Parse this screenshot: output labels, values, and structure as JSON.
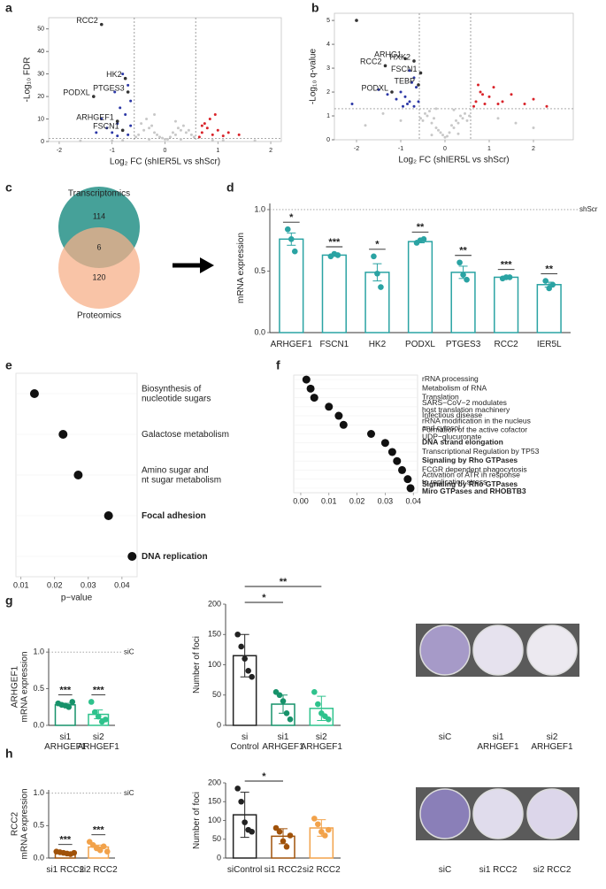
{
  "chart_data": [
    {
      "panel": "a",
      "type": "scatter",
      "xlabel": "Log₂ FC (shIER5L vs shScr)",
      "ylabel": "-Log₁₀ FDR",
      "xlim": [
        -2.2,
        2.2
      ],
      "xticks": [
        -2,
        -1,
        0,
        1,
        2
      ],
      "ylim": [
        0,
        55
      ],
      "yticks": [
        0,
        10,
        20,
        30,
        40,
        50
      ],
      "vlines": [
        -0.58,
        0.58
      ],
      "hline": 1.3,
      "series": [
        {
          "color": "#c8c8c8",
          "x": [
            -0.5,
            -0.4,
            -0.3,
            -0.2,
            -0.1,
            0,
            0.1,
            0.2,
            0.3,
            0.4,
            0.5,
            -0.45,
            -0.35,
            -0.25,
            -0.15,
            0.15,
            0.25,
            0.35,
            0.45,
            -0.55,
            0.55,
            -0.05,
            0.05,
            -0.3,
            0.3,
            -0.8,
            0.9,
            -1.0,
            1.1,
            -1.6,
            1.7,
            -0.2,
            0.2
          ],
          "values": [
            3,
            5,
            6,
            4,
            2,
            1,
            2,
            3,
            5,
            4,
            3,
            8,
            10,
            7,
            3,
            4,
            6,
            7,
            5,
            2,
            2,
            1.5,
            1,
            1,
            1,
            0.5,
            0.6,
            0.4,
            0.5,
            0.3,
            0.4,
            12,
            9
          ]
        },
        {
          "color": "#2b37a6",
          "x": [
            -0.7,
            -0.8,
            -0.9,
            -1.0,
            -0.75,
            -0.65,
            -0.85,
            -1.1,
            -0.95,
            -0.7,
            -1.2,
            -0.8,
            -0.9,
            -0.65,
            -1.3
          ],
          "values": [
            3,
            5,
            8,
            4,
            12,
            18,
            15,
            6,
            22,
            25,
            10,
            30,
            2.5,
            7,
            4
          ]
        },
        {
          "color": "#d9232a",
          "x": [
            0.65,
            0.7,
            0.8,
            0.9,
            1.0,
            1.1,
            0.75,
            0.85,
            1.2,
            1.4,
            0.7,
            0.95
          ],
          "values": [
            2,
            4,
            6,
            3,
            5,
            2.5,
            8,
            10,
            4,
            3,
            7,
            12
          ]
        },
        {
          "color": "#333333",
          "x": [
            -1.2,
            -0.75,
            -0.7,
            -1.35,
            -0.9,
            -0.8
          ],
          "values": [
            52,
            28,
            22,
            20,
            9,
            5
          ],
          "labels": [
            "RCC2",
            "HK2",
            "PTGES3",
            "PODXL",
            "ARHGEF1",
            "FSCN1"
          ]
        }
      ]
    },
    {
      "panel": "b",
      "type": "scatter",
      "xlabel": "Log₂ FC (shIER5L vs shScr)",
      "ylabel": "-Log₁₀ q-value",
      "xlim": [
        -2.5,
        2.9
      ],
      "xticks": [
        -2,
        -1,
        0,
        1,
        2
      ],
      "ylim": [
        0,
        5.3
      ],
      "yticks": [
        0,
        1,
        2,
        3,
        4,
        5
      ],
      "vlines": [
        -0.58,
        0.58
      ],
      "hline": 1.3,
      "series": [
        {
          "color": "#c8c8c8",
          "x": [
            -0.5,
            -0.4,
            -0.3,
            -0.2,
            -0.1,
            0,
            0.1,
            0.2,
            0.3,
            0.4,
            0.5,
            -0.45,
            -0.35,
            -0.25,
            -0.15,
            0.15,
            0.25,
            0.35,
            0.45,
            -0.55,
            0.55,
            -0.05,
            0.05,
            -1.0,
            1.2,
            -1.8,
            1.6,
            -1.4,
            2.0,
            -0.2,
            0.2,
            -0.3,
            0.3
          ],
          "values": [
            0.8,
            1.0,
            0.7,
            0.5,
            0.3,
            0.1,
            0.3,
            0.5,
            0.7,
            0.9,
            0.8,
            1.1,
            1.2,
            0.9,
            0.4,
            0.6,
            0.8,
            1.0,
            1.1,
            0.9,
            1.0,
            0.2,
            0.15,
            0.8,
            0.9,
            0.6,
            0.7,
            1.1,
            0.5,
            1.3,
            1.25,
            0.2,
            0.25
          ]
        },
        {
          "color": "#2b37a6",
          "x": [
            -0.7,
            -0.8,
            -0.9,
            -1.0,
            -0.65,
            -0.75,
            -0.85,
            -1.1,
            -1.3,
            -0.7,
            -0.6,
            -1.5,
            -2.1,
            -0.95,
            -0.8
          ],
          "values": [
            1.4,
            1.6,
            1.8,
            2.0,
            2.2,
            2.4,
            1.5,
            1.7,
            1.9,
            2.6,
            1.6,
            2.1,
            1.5,
            1.4,
            2.9
          ]
        },
        {
          "color": "#d9232a",
          "x": [
            0.65,
            0.7,
            0.8,
            0.9,
            1.0,
            1.1,
            1.3,
            1.5,
            1.8,
            2.0,
            2.3,
            0.75,
            0.85,
            1.2
          ],
          "values": [
            1.4,
            1.6,
            2.0,
            1.5,
            1.8,
            2.2,
            1.6,
            1.9,
            1.5,
            1.7,
            1.4,
            2.3,
            1.9,
            1.5
          ]
        },
        {
          "color": "#333333",
          "x": [
            -1.35,
            -0.9,
            -0.7,
            -0.55,
            -0.6,
            -1.2,
            -2.0
          ],
          "values": [
            3.1,
            3.4,
            3.3,
            2.8,
            2.3,
            2.0,
            5.0
          ],
          "labels": [
            "RCC2",
            "ARHG1",
            "HXK2",
            "FSCN1",
            "TEBP",
            "PODXL",
            null
          ]
        }
      ]
    },
    {
      "panel": "c",
      "type": "venn",
      "sets": [
        "Transcriptomics",
        "Proteomics"
      ],
      "values": [
        114,
        6,
        120
      ],
      "colors": [
        "#3c9c93",
        "#f7b08a"
      ]
    },
    {
      "panel": "d",
      "type": "bar",
      "ylabel": [
        "mRNA expression"
      ],
      "categories": [
        [
          "ARHGEF1"
        ],
        [
          "FSCN1"
        ],
        [
          "HK2"
        ],
        [
          "PODXL"
        ],
        [
          "PTGES3"
        ],
        [
          "RCC2"
        ],
        [
          "IER5L"
        ]
      ],
      "values": [
        0.76,
        0.63,
        0.49,
        0.74,
        0.49,
        0.45,
        0.39
      ],
      "errors": [
        0.05,
        0.01,
        0.07,
        0.01,
        0.05,
        0.005,
        0.02
      ],
      "points": [
        [
          0.84,
          0.76,
          0.66
        ],
        [
          0.62,
          0.64,
          0.63
        ],
        [
          0.62,
          0.48,
          0.37
        ],
        [
          0.73,
          0.75,
          0.76
        ],
        [
          0.57,
          0.47,
          0.43
        ],
        [
          0.44,
          0.45,
          0.45
        ],
        [
          0.42,
          0.36,
          0.39
        ]
      ],
      "stars": [
        "*",
        "***",
        "*",
        "**",
        "**",
        "***",
        "**"
      ],
      "colors": [
        "#2aa3a3",
        "#2aa3a3",
        "#2aa3a3",
        "#2aa3a3",
        "#2aa3a3",
        "#2aa3a3",
        "#2aa3a3"
      ],
      "ylim": [
        0,
        1.05
      ],
      "yticks": [
        {
          "value": 0,
          "label": "0.0"
        },
        0.5,
        {
          "value": 1,
          "label": "1.0"
        }
      ],
      "reference_line": 1,
      "reference_label": "shScr"
    },
    {
      "panel": "e",
      "type": "dot",
      "xlabel": "p−value",
      "categories": [
        [
          "Biosynthesis of",
          "nucleotide sugars"
        ],
        [
          "Galactose metabolism"
        ],
        [
          "Amino sugar and",
          "nt sugar metabolism"
        ],
        [
          "Focal adhesion"
        ],
        [
          "DNA replication"
        ]
      ],
      "values": [
        0.014,
        0.0225,
        0.027,
        0.036,
        0.043
      ],
      "bold": [
        3,
        4
      ],
      "xlim": [
        0.0085,
        0.0445
      ],
      "xticks": [
        0.01,
        0.02,
        0.03,
        0.04
      ]
    },
    {
      "panel": "f",
      "type": "dot",
      "categories": [
        [
          "rRNA processing"
        ],
        [
          "Metabolism of RNA"
        ],
        [
          "Translation"
        ],
        [
          "SARS−CoV−2 modulates",
          "host translation machinery"
        ],
        [
          "Infectious disease"
        ],
        [
          "rRNA modification in the nucleus",
          "and cytosol"
        ],
        [
          "Formation of the active cofactor",
          "UDP−glucuronate"
        ],
        [
          "DNA strand elongation"
        ],
        [
          "Transcriptional Regulation by TP53"
        ],
        [
          "Signaling by Rho GTPases"
        ],
        [
          "FCGR dependent phagocytosis"
        ],
        [
          "Activation of ATR in response",
          "to replication stress"
        ],
        [
          "Signaling by Rho GTPases",
          "Miro GTPases and RHOBTB3"
        ]
      ],
      "values": [
        0.002,
        0.0035,
        0.0048,
        0.01,
        0.0135,
        0.0152,
        0.025,
        0.03,
        0.0325,
        0.0342,
        0.036,
        0.038,
        0.039
      ],
      "bold": [
        7,
        9,
        12
      ],
      "xlim": [
        -0.0025,
        0.0415
      ],
      "xticks": [
        {
          "value": 0,
          "label": "0.00"
        },
        0.01,
        0.02,
        0.03,
        0.04
      ]
    },
    {
      "panel": "g",
      "type": "bar",
      "ylabel": [
        "ARHGEF1",
        "mRNA expression"
      ],
      "categories": [
        [
          "si1",
          "ARHGEF1"
        ],
        [
          "si2",
          "ARHGEF1"
        ]
      ],
      "values": [
        0.28,
        0.15
      ],
      "errors": [
        0.02,
        0.06
      ],
      "points": [
        [
          0.3,
          0.28,
          0.27,
          0.25,
          0.32
        ],
        [
          0.32,
          0.18,
          0.12,
          0.05,
          0.08
        ]
      ],
      "stars": [
        "***",
        "***"
      ],
      "colors": [
        "#17926a",
        "#2ec28c"
      ],
      "ylim": [
        0,
        1.05
      ],
      "yticks": [
        {
          "value": 0,
          "label": "0.0"
        },
        0.5,
        {
          "value": 1,
          "label": "1.0"
        }
      ],
      "reference_line": 1,
      "reference_label": "siC"
    },
    {
      "type": "bar",
      "ylabel": [
        "Number of foci"
      ],
      "categories": [
        [
          "si",
          "Control"
        ],
        [
          "si1",
          "ARHGEF1"
        ],
        [
          "si2",
          "ARHGEF1"
        ]
      ],
      "values": [
        115,
        35,
        28
      ],
      "errors": [
        35,
        15,
        20
      ],
      "points": [
        [
          150,
          130,
          110,
          90,
          80
        ],
        [
          55,
          50,
          40,
          20,
          10
        ],
        [
          55,
          35,
          20,
          15,
          10
        ]
      ],
      "colors": [
        "#222222",
        "#17926a",
        "#2ec28c"
      ],
      "ylim": [
        0,
        200
      ],
      "yticks": [
        0,
        50,
        100,
        150,
        200
      ],
      "brackets": [
        {
          "from": 0,
          "to": 1,
          "label": "*"
        },
        {
          "from": 0,
          "to": 2,
          "label": "**"
        }
      ]
    },
    {
      "type": "photo",
      "labels": [
        [
          "siC"
        ],
        [
          "si1",
          "ARHGEF1"
        ],
        [
          "si2",
          "ARHGEF1"
        ]
      ],
      "colors": [
        "#a69ac8",
        "#e6e2ee",
        "#ece9f0"
      ]
    },
    {
      "panel": "h",
      "type": "bar",
      "ylabel": [
        "RCC2",
        "mRNA expression"
      ],
      "categories": [
        [
          "si1 RCC2"
        ],
        [
          "si2 RCC2"
        ]
      ],
      "values": [
        0.08,
        0.17
      ],
      "errors": [
        0.01,
        0.03
      ],
      "points": [
        [
          0.1,
          0.09,
          0.08,
          0.07,
          0.06,
          0.08
        ],
        [
          0.25,
          0.2,
          0.15,
          0.12,
          0.18,
          0.1
        ]
      ],
      "stars": [
        "***",
        "***"
      ],
      "colors": [
        "#a0520a",
        "#f2a24a"
      ],
      "ylim": [
        0,
        1.05
      ],
      "yticks": [
        {
          "value": 0,
          "label": "0.0"
        },
        0.5,
        {
          "value": 1,
          "label": "1.0"
        }
      ],
      "reference_line": 1,
      "reference_label": "siC"
    },
    {
      "type": "bar",
      "ylabel": [
        "Number of foci"
      ],
      "categories": [
        [
          "siControl"
        ],
        [
          "si1 RCC2"
        ],
        [
          "si2 RCC2"
        ]
      ],
      "values": [
        115,
        58,
        80
      ],
      "errors": [
        60,
        20,
        22
      ],
      "points": [
        [
          185,
          150,
          95,
          75,
          70
        ],
        [
          80,
          70,
          45,
          30,
          60
        ],
        [
          105,
          90,
          70,
          60,
          75
        ]
      ],
      "colors": [
        "#222222",
        "#a0520a",
        "#f2a24a"
      ],
      "ylim": [
        0,
        200
      ],
      "yticks": [
        0,
        50,
        100,
        150,
        200
      ],
      "brackets": [
        {
          "from": 0,
          "to": 1,
          "label": "*"
        }
      ]
    },
    {
      "type": "photo",
      "labels": [
        [
          "siC"
        ],
        [
          "si1 RCC2"
        ],
        [
          "si2 RCC2"
        ]
      ],
      "colors": [
        "#8a7fb8",
        "#e0dcec",
        "#dcd6ea"
      ]
    }
  ]
}
